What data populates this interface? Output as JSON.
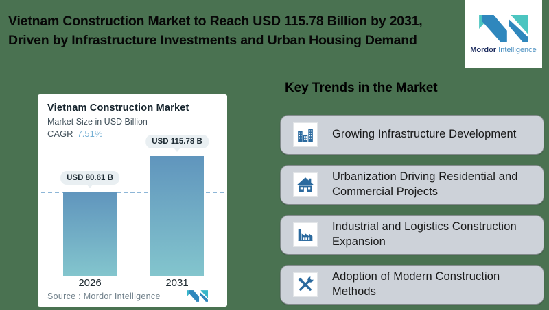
{
  "header": {
    "title_line1": "Vietnam Construction Market to Reach USD 115.78 Billion by 2031,",
    "title_line2": "Driven by Infrastructure Investments and Urban Housing Demand",
    "brand": {
      "name_bold": "Mordor",
      "name_light": "Intelligence"
    }
  },
  "chart_card": {
    "title": "Vietnam Construction Market",
    "subtitle": "Market Size in USD Billion",
    "cagr_label": "CAGR",
    "cagr_value": "7.51%",
    "source_text": "Source :  Mordor Intelligence"
  },
  "chart_data": {
    "type": "bar",
    "title": "Vietnam Construction Market",
    "subtitle": "Market Size in USD Billion",
    "categories": [
      "2026",
      "2031"
    ],
    "values": [
      80.61,
      115.78
    ],
    "data_labels": [
      "USD 80.61 B",
      "USD 115.78 B"
    ],
    "unit": "USD Billion",
    "cagr_percent": 7.51,
    "reference_line": 80.61,
    "ylim": [
      0,
      120
    ],
    "grid": false,
    "legend": false,
    "source": "Source :  Mordor Intelligence",
    "bar_gradient": [
      "#6095bd",
      "#83c5cd"
    ]
  },
  "trends": {
    "heading": "Key Trends in the Market",
    "items": [
      {
        "icon": "buildings-icon",
        "label": "Growing Infrastructure Development"
      },
      {
        "icon": "house-icon",
        "label": "Urbanization Driving Residential and Commercial Projects"
      },
      {
        "icon": "factory-icon",
        "label": "Industrial and Logistics Construction Expansion"
      },
      {
        "icon": "tools-icon",
        "label": "Adoption of Modern Construction Methods"
      }
    ]
  },
  "colors": {
    "background": "#4a7251",
    "card_white": "#ffffff",
    "trend_card_gray": "#cdd2d9",
    "icon_blue": "#2a699e",
    "brand_blue": "#2f87bd",
    "brand_teal": "#4cc5c0",
    "cagr_blue": "#74afd3",
    "dash_line": "#8db6d7"
  }
}
